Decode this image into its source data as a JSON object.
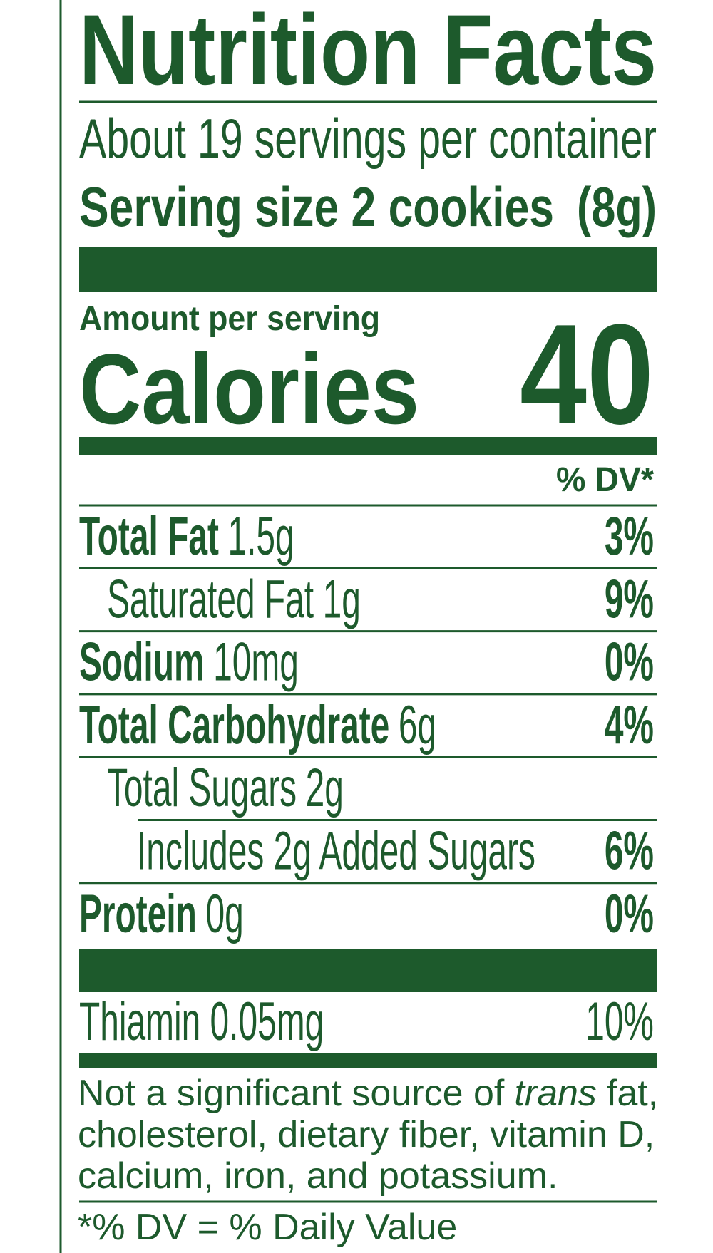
{
  "header": {
    "title": "Nutrition Facts",
    "servings": "About 19 servings per container",
    "serving_size": "Serving size 2 cookies",
    "serving_weight": "(8g)"
  },
  "calories": {
    "label_small": "Amount per serving",
    "label": "Calories",
    "value": "40"
  },
  "dv_header": "% DV*",
  "nutrients": [
    {
      "name": "Total Fat",
      "amount": "1.5g",
      "dv": "3%",
      "bold": true,
      "indent": 0
    },
    {
      "name": "Saturated Fat",
      "amount": "1g",
      "dv": "9%",
      "bold": false,
      "indent": 1
    },
    {
      "name": "Sodium",
      "amount": "10mg",
      "dv": "0%",
      "bold": true,
      "indent": 0
    },
    {
      "name": "Total Carbohydrate",
      "amount": "6g",
      "dv": "4%",
      "bold": true,
      "indent": 0
    },
    {
      "name": "Total Sugars",
      "amount": "2g",
      "dv": null,
      "bold": false,
      "indent": 1
    },
    {
      "name": "Includes 2g Added Sugars",
      "amount": null,
      "dv": "6%",
      "bold": false,
      "indent": 2
    },
    {
      "name": "Protein",
      "amount": "0g",
      "dv": "0%",
      "bold": true,
      "indent": 0
    }
  ],
  "vitamins": [
    {
      "name": "Thiamin 0.05mg",
      "dv": "10%"
    }
  ],
  "footnote": {
    "before_italic": "Not a significant source of",
    "italic": "trans",
    "after_italic": "fat,",
    "line2": "cholesterol, dietary fiber, vitamin D,",
    "line3": "calcium, iron, and potassium."
  },
  "dv_note": "*% DV = % Daily Value"
}
